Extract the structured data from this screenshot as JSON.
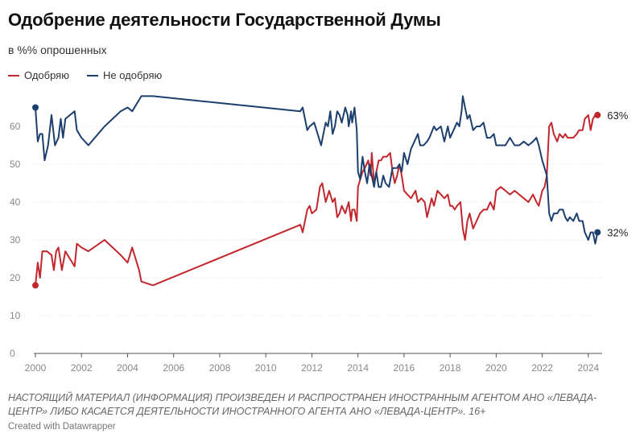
{
  "chart_data": {
    "type": "line",
    "title": "Одобрение деятельности Государственной Думы",
    "subtitle": "в %% опрошенных",
    "xlim": [
      2000,
      2024.6
    ],
    "ylim": [
      0,
      70
    ],
    "x_ticks": [
      2000,
      2002,
      2004,
      2006,
      2008,
      2010,
      2012,
      2014,
      2016,
      2018,
      2020,
      2022,
      2024
    ],
    "y_ticks": [
      0,
      10,
      20,
      30,
      40,
      50,
      60
    ],
    "grid": true,
    "legend_position": "top-left",
    "series": [
      {
        "name": "Одобряю",
        "color": "#c1272d",
        "end_label": "63%",
        "points": [
          [
            2000.0,
            18
          ],
          [
            2000.1,
            24
          ],
          [
            2000.2,
            20
          ],
          [
            2000.3,
            27
          ],
          [
            2000.5,
            27
          ],
          [
            2000.7,
            26
          ],
          [
            2000.8,
            22
          ],
          [
            2000.9,
            27
          ],
          [
            2001.0,
            28
          ],
          [
            2001.15,
            22
          ],
          [
            2001.3,
            27
          ],
          [
            2001.5,
            25
          ],
          [
            2001.7,
            23
          ],
          [
            2001.8,
            29
          ],
          [
            2002.0,
            28
          ],
          [
            2002.3,
            27
          ],
          [
            2003.0,
            30
          ],
          [
            2003.7,
            26
          ],
          [
            2004.0,
            24
          ],
          [
            2004.2,
            28
          ],
          [
            2004.5,
            22
          ],
          [
            2004.6,
            19
          ],
          [
            2005.1,
            18
          ],
          [
            2011.5,
            34
          ],
          [
            2011.6,
            32
          ],
          [
            2011.8,
            38
          ],
          [
            2011.9,
            39
          ],
          [
            2012.0,
            37
          ],
          [
            2012.2,
            38
          ],
          [
            2012.35,
            44
          ],
          [
            2012.45,
            45
          ],
          [
            2012.6,
            40
          ],
          [
            2012.75,
            43
          ],
          [
            2012.9,
            40
          ],
          [
            2013.0,
            41
          ],
          [
            2013.1,
            36
          ],
          [
            2013.2,
            37
          ],
          [
            2013.3,
            39
          ],
          [
            2013.45,
            37
          ],
          [
            2013.6,
            40
          ],
          [
            2013.7,
            35
          ],
          [
            2013.75,
            38
          ],
          [
            2013.85,
            38
          ],
          [
            2013.95,
            35
          ],
          [
            2014.0,
            44
          ],
          [
            2014.1,
            46
          ],
          [
            2014.2,
            48
          ],
          [
            2014.3,
            49
          ],
          [
            2014.45,
            51
          ],
          [
            2014.55,
            47
          ],
          [
            2014.6,
            53
          ],
          [
            2014.7,
            45
          ],
          [
            2014.8,
            48
          ],
          [
            2014.9,
            51
          ],
          [
            2015.0,
            51
          ],
          [
            2015.1,
            52
          ],
          [
            2015.25,
            52
          ],
          [
            2015.4,
            53
          ],
          [
            2015.5,
            48
          ],
          [
            2015.6,
            45
          ],
          [
            2015.7,
            47
          ],
          [
            2015.8,
            50
          ],
          [
            2015.9,
            47
          ],
          [
            2016.0,
            43
          ],
          [
            2016.15,
            42
          ],
          [
            2016.3,
            41
          ],
          [
            2016.5,
            43
          ],
          [
            2016.6,
            40
          ],
          [
            2016.75,
            41
          ],
          [
            2016.9,
            40
          ],
          [
            2017.0,
            36
          ],
          [
            2017.2,
            41
          ],
          [
            2017.3,
            39
          ],
          [
            2017.45,
            43
          ],
          [
            2017.6,
            42
          ],
          [
            2017.75,
            41
          ],
          [
            2017.9,
            42
          ],
          [
            2018.0,
            39
          ],
          [
            2018.1,
            39
          ],
          [
            2018.2,
            38
          ],
          [
            2018.3,
            39
          ],
          [
            2018.45,
            40
          ],
          [
            2018.55,
            33
          ],
          [
            2018.65,
            30
          ],
          [
            2018.75,
            35
          ],
          [
            2018.85,
            37
          ],
          [
            2019.0,
            33
          ],
          [
            2019.15,
            35
          ],
          [
            2019.3,
            37
          ],
          [
            2019.45,
            38
          ],
          [
            2019.6,
            38
          ],
          [
            2019.75,
            40
          ],
          [
            2019.9,
            38
          ],
          [
            2020.0,
            43
          ],
          [
            2020.2,
            44
          ],
          [
            2020.4,
            43
          ],
          [
            2020.6,
            42
          ],
          [
            2020.8,
            43
          ],
          [
            2021.0,
            42
          ],
          [
            2021.2,
            41
          ],
          [
            2021.4,
            40
          ],
          [
            2021.6,
            42
          ],
          [
            2021.75,
            40
          ],
          [
            2021.85,
            39
          ],
          [
            2022.0,
            43
          ],
          [
            2022.1,
            44
          ],
          [
            2022.2,
            47
          ],
          [
            2022.3,
            60
          ],
          [
            2022.4,
            61
          ],
          [
            2022.5,
            58
          ],
          [
            2022.65,
            56
          ],
          [
            2022.75,
            58
          ],
          [
            2022.9,
            57
          ],
          [
            2023.0,
            58
          ],
          [
            2023.1,
            57
          ],
          [
            2023.2,
            57
          ],
          [
            2023.35,
            57
          ],
          [
            2023.5,
            58
          ],
          [
            2023.6,
            59
          ],
          [
            2023.75,
            59
          ],
          [
            2023.85,
            62
          ],
          [
            2024.0,
            63
          ],
          [
            2024.1,
            59
          ],
          [
            2024.2,
            62
          ],
          [
            2024.3,
            63
          ],
          [
            2024.4,
            63
          ]
        ]
      },
      {
        "name": "Не одобряю",
        "color": "#1c3f6e",
        "end_label": "32%",
        "points": [
          [
            2000.0,
            65
          ],
          [
            2000.1,
            56
          ],
          [
            2000.2,
            58
          ],
          [
            2000.3,
            58
          ],
          [
            2000.4,
            51
          ],
          [
            2000.55,
            55
          ],
          [
            2000.7,
            63
          ],
          [
            2000.85,
            55
          ],
          [
            2001.0,
            57
          ],
          [
            2001.1,
            62
          ],
          [
            2001.2,
            57
          ],
          [
            2001.3,
            62
          ],
          [
            2001.5,
            63
          ],
          [
            2001.7,
            64
          ],
          [
            2001.8,
            59
          ],
          [
            2002.0,
            57
          ],
          [
            2002.3,
            55
          ],
          [
            2003.0,
            60
          ],
          [
            2003.7,
            64
          ],
          [
            2004.0,
            65
          ],
          [
            2004.2,
            64
          ],
          [
            2004.5,
            67
          ],
          [
            2004.6,
            68
          ],
          [
            2005.1,
            68
          ],
          [
            2011.5,
            64
          ],
          [
            2011.6,
            65
          ],
          [
            2011.8,
            59
          ],
          [
            2011.9,
            60
          ],
          [
            2012.1,
            61
          ],
          [
            2012.25,
            58
          ],
          [
            2012.4,
            55
          ],
          [
            2012.5,
            58
          ],
          [
            2012.6,
            61
          ],
          [
            2012.7,
            60
          ],
          [
            2012.8,
            64
          ],
          [
            2012.9,
            58
          ],
          [
            2013.0,
            60
          ],
          [
            2013.1,
            64
          ],
          [
            2013.2,
            63
          ],
          [
            2013.3,
            61
          ],
          [
            2013.45,
            65
          ],
          [
            2013.55,
            63
          ],
          [
            2013.6,
            60
          ],
          [
            2013.7,
            64
          ],
          [
            2013.75,
            61
          ],
          [
            2013.85,
            65
          ],
          [
            2013.95,
            59
          ],
          [
            2014.0,
            48
          ],
          [
            2014.1,
            46
          ],
          [
            2014.2,
            52
          ],
          [
            2014.3,
            48
          ],
          [
            2014.4,
            45
          ],
          [
            2014.5,
            50
          ],
          [
            2014.6,
            47
          ],
          [
            2014.7,
            44
          ],
          [
            2014.8,
            48
          ],
          [
            2014.9,
            44
          ],
          [
            2015.0,
            44
          ],
          [
            2015.1,
            47
          ],
          [
            2015.2,
            45
          ],
          [
            2015.35,
            44
          ],
          [
            2015.5,
            49
          ],
          [
            2015.6,
            49
          ],
          [
            2015.7,
            49
          ],
          [
            2015.8,
            50
          ],
          [
            2015.9,
            48
          ],
          [
            2016.0,
            53
          ],
          [
            2016.15,
            50
          ],
          [
            2016.3,
            54
          ],
          [
            2016.45,
            56
          ],
          [
            2016.6,
            58
          ],
          [
            2016.7,
            55
          ],
          [
            2016.85,
            55
          ],
          [
            2017.0,
            56
          ],
          [
            2017.1,
            57
          ],
          [
            2017.3,
            60
          ],
          [
            2017.4,
            59
          ],
          [
            2017.6,
            60
          ],
          [
            2017.75,
            56
          ],
          [
            2017.9,
            60
          ],
          [
            2018.0,
            57
          ],
          [
            2018.15,
            59
          ],
          [
            2018.3,
            61
          ],
          [
            2018.4,
            60
          ],
          [
            2018.5,
            64
          ],
          [
            2018.55,
            68
          ],
          [
            2018.65,
            65
          ],
          [
            2018.75,
            62
          ],
          [
            2018.85,
            63
          ],
          [
            2019.0,
            59
          ],
          [
            2019.15,
            60
          ],
          [
            2019.3,
            60
          ],
          [
            2019.45,
            61
          ],
          [
            2019.6,
            57
          ],
          [
            2019.75,
            57
          ],
          [
            2019.9,
            58
          ],
          [
            2020.0,
            55
          ],
          [
            2020.2,
            55
          ],
          [
            2020.4,
            55
          ],
          [
            2020.6,
            57
          ],
          [
            2020.8,
            55
          ],
          [
            2021.0,
            55
          ],
          [
            2021.2,
            56
          ],
          [
            2021.4,
            55
          ],
          [
            2021.6,
            56
          ],
          [
            2021.75,
            57
          ],
          [
            2021.85,
            55
          ],
          [
            2022.0,
            51
          ],
          [
            2022.1,
            49
          ],
          [
            2022.2,
            47
          ],
          [
            2022.3,
            37
          ],
          [
            2022.4,
            35
          ],
          [
            2022.5,
            37
          ],
          [
            2022.65,
            37
          ],
          [
            2022.75,
            38
          ],
          [
            2022.9,
            38
          ],
          [
            2023.0,
            36
          ],
          [
            2023.1,
            35
          ],
          [
            2023.2,
            36
          ],
          [
            2023.35,
            35
          ],
          [
            2023.5,
            37
          ],
          [
            2023.6,
            35
          ],
          [
            2023.75,
            35
          ],
          [
            2023.85,
            32
          ],
          [
            2024.0,
            30
          ],
          [
            2024.1,
            32
          ],
          [
            2024.2,
            32
          ],
          [
            2024.3,
            29
          ],
          [
            2024.4,
            32
          ]
        ]
      }
    ]
  },
  "legend": {
    "approve": "Одобряю",
    "disapprove": "Не одобряю"
  },
  "footer": {
    "notice": "НАСТОЯЩИЙ МАТЕРИАЛ (ИНФОРМАЦИЯ) ПРОИЗВЕДЕН И РАСПРОСТРАНЕН ИНОСТРАННЫМ АГЕНТОМ АНО «ЛЕВАДА-ЦЕНТР» ЛИБО КАСАЕТСЯ ДЕЯТЕЛЬНОСТИ ИНОСТРАННОГО АГЕНТА АНО «ЛЕВАДА-ЦЕНТР». 16+",
    "credit": "Created with Datawrapper"
  }
}
